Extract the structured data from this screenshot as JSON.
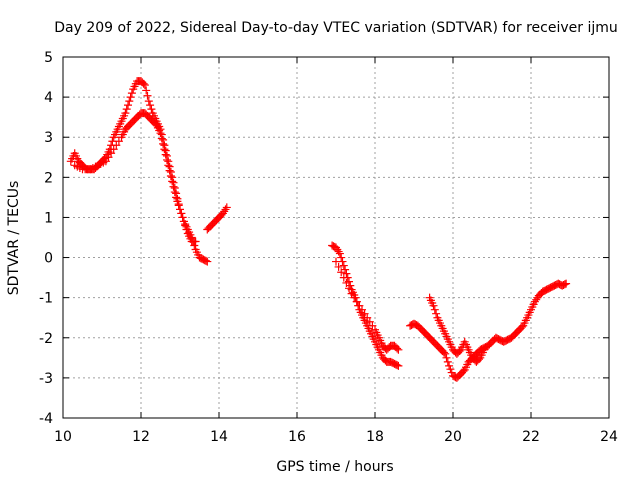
{
  "chart_data": {
    "type": "scatter",
    "title": "Day 209 of 2022, Sidereal Day-to-day VTEC variation (SDTVAR) for receiver ijmu",
    "xlabel": "GPS time / hours",
    "ylabel": "SDTVAR / TECUs",
    "xlim": [
      10,
      24
    ],
    "ylim": [
      -4,
      5
    ],
    "xticks": [
      "10",
      "12",
      "14",
      "16",
      "18",
      "20",
      "22",
      "24"
    ],
    "yticks": [
      "-4",
      "-3",
      "-2",
      "-1",
      "0",
      "1",
      "2",
      "3",
      "4",
      "5"
    ],
    "grid": true,
    "marker": "+",
    "color": "#ff0000",
    "series": [
      {
        "name": "segment-1-upper",
        "x": [
          10.2,
          10.3,
          10.4,
          10.5,
          10.6,
          10.7,
          10.8,
          10.9,
          11.0,
          11.1,
          11.2,
          11.3,
          11.4,
          11.5,
          11.6,
          11.7,
          11.8,
          11.9,
          12.0,
          12.1,
          12.2,
          12.3,
          12.4,
          12.5,
          12.6,
          12.7,
          12.8,
          12.9,
          13.0,
          13.1,
          13.2,
          13.3,
          13.4,
          13.5,
          13.6,
          13.7
        ],
        "values": [
          2.4,
          2.6,
          2.4,
          2.3,
          2.2,
          2.2,
          2.2,
          2.3,
          2.4,
          2.5,
          2.7,
          3.0,
          3.2,
          3.4,
          3.6,
          3.9,
          4.2,
          4.4,
          4.4,
          4.3,
          3.9,
          3.6,
          3.4,
          3.2,
          2.8,
          2.4,
          2.0,
          1.6,
          1.2,
          0.9,
          0.7,
          0.5,
          0.2,
          0.0,
          -0.05,
          -0.1
        ]
      },
      {
        "name": "segment-1-lower",
        "x": [
          10.3,
          10.5,
          10.7,
          10.9,
          11.1,
          11.3,
          11.5,
          11.6,
          11.7,
          11.8,
          11.9,
          12.0,
          12.1,
          12.2,
          12.3,
          12.4,
          12.5,
          12.6,
          12.7,
          12.8,
          12.9,
          13.0,
          13.1,
          13.2,
          13.3,
          13.4
        ],
        "values": [
          2.3,
          2.2,
          2.2,
          2.3,
          2.4,
          2.7,
          3.0,
          3.2,
          3.3,
          3.4,
          3.5,
          3.6,
          3.6,
          3.5,
          3.4,
          3.3,
          3.1,
          2.7,
          2.3,
          1.9,
          1.5,
          1.2,
          0.9,
          0.6,
          0.4,
          0.4
        ]
      },
      {
        "name": "segment-2",
        "x": [
          13.7,
          13.8,
          13.9,
          14.0,
          14.1,
          14.2
        ],
        "values": [
          0.7,
          0.8,
          0.9,
          1.0,
          1.1,
          1.25
        ]
      },
      {
        "name": "segment-3",
        "x": [
          16.9,
          17.0,
          17.1,
          17.2,
          17.3,
          17.4,
          17.5,
          17.6,
          17.7,
          17.8,
          17.9,
          18.0,
          18.1,
          18.2,
          18.3,
          18.4,
          18.5,
          18.6
        ],
        "values": [
          0.3,
          0.25,
          0.1,
          -0.2,
          -0.5,
          -0.8,
          -1.0,
          -1.3,
          -1.5,
          -1.7,
          -1.9,
          -2.1,
          -2.3,
          -2.5,
          -2.6,
          -2.6,
          -2.65,
          -2.7
        ]
      },
      {
        "name": "segment-3-lower",
        "x": [
          17.0,
          17.2,
          17.4,
          17.6,
          17.8,
          18.0,
          18.1,
          18.2,
          18.3,
          18.4,
          18.5,
          18.6
        ],
        "values": [
          -0.1,
          -0.5,
          -0.9,
          -1.2,
          -1.5,
          -1.8,
          -2.0,
          -2.2,
          -2.3,
          -2.2,
          -2.2,
          -2.3
        ]
      },
      {
        "name": "segment-4",
        "x": [
          18.9,
          19.0,
          19.1,
          19.2,
          19.3,
          19.4,
          19.5,
          19.6,
          19.7,
          19.8,
          19.9,
          20.0,
          20.1,
          20.2,
          20.3,
          20.4,
          20.5,
          20.6,
          20.7,
          20.8,
          20.9,
          21.0,
          21.1,
          21.2,
          21.3,
          21.4,
          21.5,
          21.6,
          21.7,
          21.8,
          21.9,
          22.0,
          22.1,
          22.2,
          22.3,
          22.4,
          22.5,
          22.6,
          22.7,
          22.8,
          22.9
        ],
        "values": [
          -1.7,
          -1.65,
          -1.7,
          -1.8,
          -1.9,
          -2.0,
          -2.1,
          -2.2,
          -2.3,
          -2.4,
          -2.7,
          -2.95,
          -3.0,
          -2.9,
          -2.8,
          -2.6,
          -2.5,
          -2.4,
          -2.3,
          -2.25,
          -2.2,
          -2.1,
          -2.0,
          -2.05,
          -2.1,
          -2.05,
          -2.0,
          -1.9,
          -1.8,
          -1.7,
          -1.5,
          -1.3,
          -1.1,
          -0.95,
          -0.85,
          -0.8,
          -0.75,
          -0.7,
          -0.65,
          -0.7,
          -0.65
        ]
      },
      {
        "name": "segment-4-upper",
        "x": [
          19.4,
          19.5,
          19.6,
          19.7,
          19.8,
          19.9,
          20.0,
          20.1,
          20.2,
          20.3,
          20.4,
          20.5,
          20.6,
          20.7,
          20.8
        ],
        "values": [
          -1.0,
          -1.2,
          -1.5,
          -1.7,
          -1.9,
          -2.1,
          -2.3,
          -2.4,
          -2.3,
          -2.1,
          -2.3,
          -2.5,
          -2.6,
          -2.5,
          -2.3
        ]
      }
    ]
  }
}
